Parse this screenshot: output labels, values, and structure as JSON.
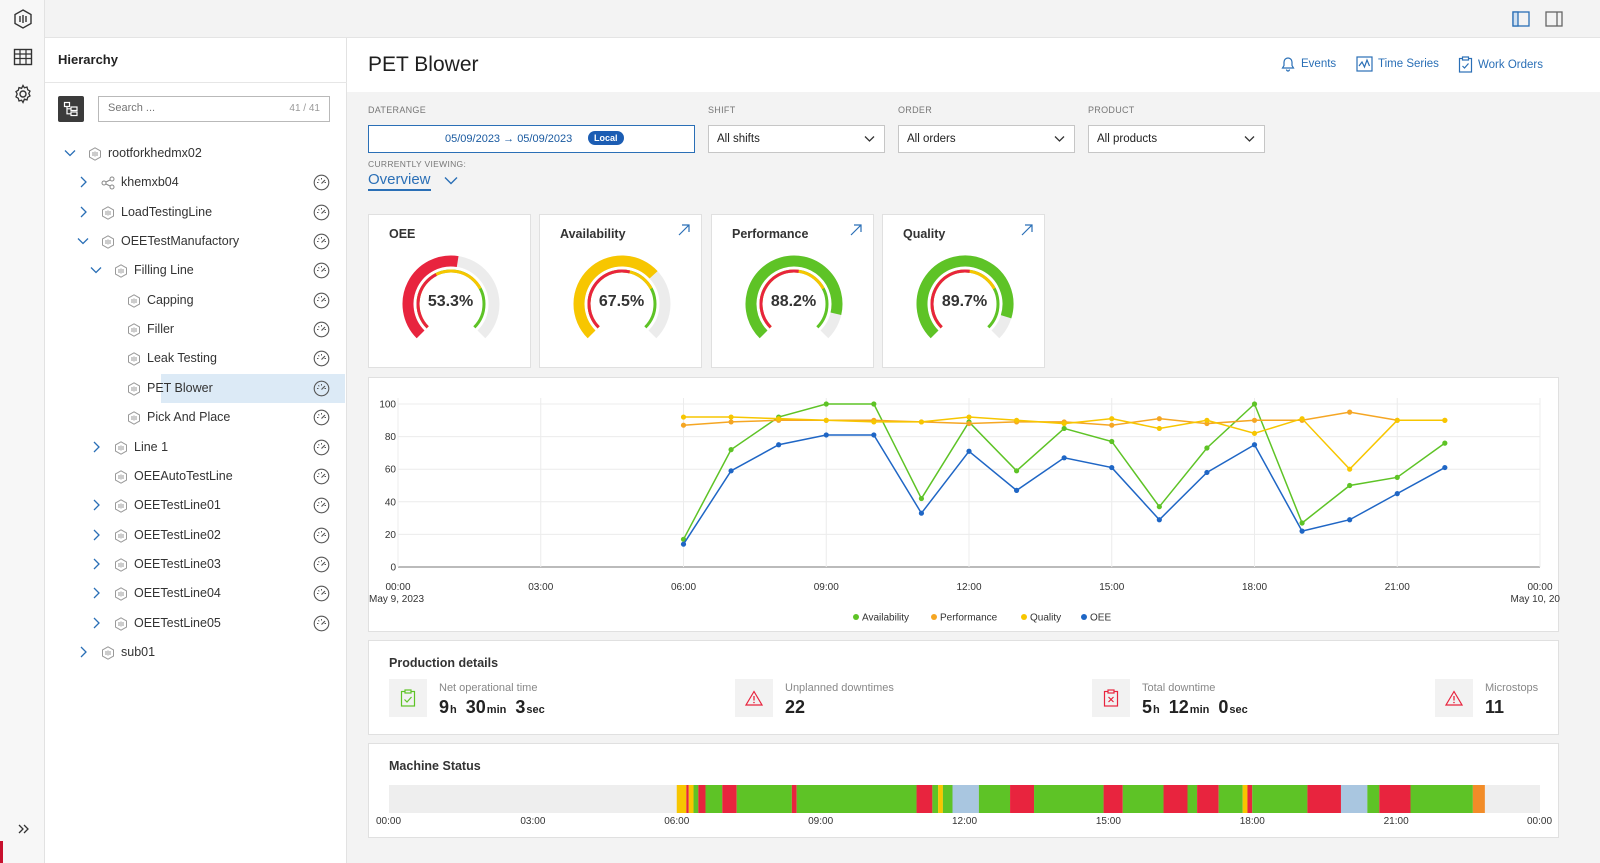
{
  "sidebar": {
    "title": "Hierarchy",
    "search": {
      "placeholder": "Search ...",
      "count": "41 / 41"
    },
    "items": [
      {
        "label": "rootforkhedmx02",
        "level": 0,
        "expanded": true,
        "icon": "plant-icon",
        "gauge": false
      },
      {
        "label": "khemxb04",
        "level": 1,
        "expanded": false,
        "icon": "share-icon",
        "gauge": true
      },
      {
        "label": "LoadTestingLine",
        "level": 1,
        "expanded": false,
        "icon": "plant-icon",
        "gauge": true
      },
      {
        "label": "OEETestManufactory",
        "level": 1,
        "expanded": true,
        "icon": "plant-icon",
        "gauge": true
      },
      {
        "label": "Filling Line",
        "level": 2,
        "expanded": true,
        "icon": "plant-icon",
        "gauge": true
      },
      {
        "label": "Capping",
        "level": 3,
        "icon": "plant-icon",
        "gauge": true
      },
      {
        "label": "Filler",
        "level": 3,
        "icon": "plant-icon",
        "gauge": true
      },
      {
        "label": "Leak Testing",
        "level": 3,
        "icon": "plant-icon",
        "gauge": true
      },
      {
        "label": "PET Blower",
        "level": 3,
        "icon": "plant-icon",
        "gauge": true,
        "selected": true
      },
      {
        "label": "Pick And Place",
        "level": 3,
        "icon": "plant-icon",
        "gauge": true
      },
      {
        "label": "Line 1",
        "level": 2,
        "expanded": false,
        "icon": "plant-icon",
        "gauge": true
      },
      {
        "label": "OEEAutoTestLine",
        "level": 2,
        "icon": "plant-icon",
        "gauge": true
      },
      {
        "label": "OEETestLine01",
        "level": 2,
        "expanded": false,
        "icon": "plant-icon",
        "gauge": true
      },
      {
        "label": "OEETestLine02",
        "level": 2,
        "expanded": false,
        "icon": "plant-icon",
        "gauge": true
      },
      {
        "label": "OEETestLine03",
        "level": 2,
        "expanded": false,
        "icon": "plant-icon",
        "gauge": true
      },
      {
        "label": "OEETestLine04",
        "level": 2,
        "expanded": false,
        "icon": "plant-icon",
        "gauge": true
      },
      {
        "label": "OEETestLine05",
        "level": 2,
        "expanded": false,
        "icon": "plant-icon",
        "gauge": true
      },
      {
        "label": "sub01",
        "level": 1,
        "expanded": false,
        "icon": "plant-icon",
        "gauge": false
      }
    ]
  },
  "header": {
    "title": "PET Blower",
    "actions": [
      {
        "label": "Events",
        "icon": "bell-icon"
      },
      {
        "label": "Time Series",
        "icon": "timeseries-icon"
      },
      {
        "label": "Work Orders",
        "icon": "clipboard-icon"
      }
    ]
  },
  "filters": {
    "daterange": {
      "label": "DATERANGE",
      "from": "05/09/2023",
      "to": "05/09/2023",
      "badge": "Local"
    },
    "shift": {
      "label": "SHIFT",
      "value": "All shifts"
    },
    "order": {
      "label": "ORDER",
      "value": "All orders"
    },
    "product": {
      "label": "PRODUCT",
      "value": "All products"
    }
  },
  "viewing": {
    "label": "CURRENTLY VIEWING:",
    "value": "Overview"
  },
  "kpis": [
    {
      "title": "OEE",
      "value": "53.3%",
      "outer": 0.533,
      "outer_color": "#e8243e",
      "inner": 0.73,
      "inner_color": "#f7c600",
      "link": false
    },
    {
      "title": "Availability",
      "value": "67.5%",
      "outer": 0.675,
      "outer_color": "#f7c600",
      "inner": 0.55,
      "inner_color": "#e8243e",
      "link": true
    },
    {
      "title": "Performance",
      "value": "88.2%",
      "outer": 0.882,
      "outer_color": "#5ec326",
      "inner": 0.53,
      "inner_color": "#e8243e",
      "link": true
    },
    {
      "title": "Quality",
      "value": "89.7%",
      "outer": 0.897,
      "outer_color": "#5ec326",
      "inner": 0.53,
      "inner_color": "#e8243e",
      "link": true
    }
  ],
  "colors": {
    "accent": "#2a6fb6",
    "green": "#5ec326",
    "red": "#e8243e",
    "yellow": "#f7c600",
    "orange": "#f28c28",
    "blue": "#1f66c5"
  },
  "chart_data": {
    "type": "line",
    "x": [
      "06:00",
      "07:00",
      "08:00",
      "09:00",
      "10:00",
      "11:00",
      "12:00",
      "13:00",
      "14:00",
      "15:00",
      "16:00",
      "17:00",
      "18:00",
      "19:00",
      "20:00",
      "21:00",
      "22:00"
    ],
    "xticks": [
      "00:00",
      "03:00",
      "06:00",
      "09:00",
      "12:00",
      "15:00",
      "18:00",
      "21:00",
      "00:00"
    ],
    "xdate_start": "May 9, 2023",
    "xdate_end": "May 10, 20",
    "ylim": [
      0,
      100
    ],
    "yticks": [
      0,
      20,
      40,
      60,
      80,
      100
    ],
    "grid": true,
    "legend_position": "bottom-center",
    "series": [
      {
        "name": "Availability",
        "color": "#5ec326",
        "values": [
          17,
          72,
          92,
          100,
          100,
          42,
          89,
          59,
          85,
          77,
          37,
          73,
          100,
          27,
          50,
          55,
          76
        ]
      },
      {
        "name": "Performance",
        "color": "#f5a623",
        "values": [
          87,
          89,
          90,
          90,
          90,
          89,
          88,
          89,
          89,
          87,
          91,
          88,
          90,
          90,
          95,
          90,
          90
        ]
      },
      {
        "name": "Quality",
        "color": "#f7c600",
        "values": [
          92,
          92,
          91,
          90,
          89,
          89,
          92,
          90,
          88,
          91,
          85,
          90,
          82,
          91,
          60,
          90,
          90
        ]
      },
      {
        "name": "OEE",
        "color": "#1f66c5",
        "values": [
          14,
          59,
          75,
          81,
          81,
          33,
          71,
          47,
          67,
          61,
          29,
          58,
          75,
          22,
          29,
          45,
          61
        ]
      }
    ]
  },
  "production": {
    "title": "Production details",
    "items": [
      {
        "label": "Net operational time",
        "icon": "clipboard-check-icon",
        "parts": [
          [
            "9",
            "h"
          ],
          [
            "30",
            "min"
          ],
          [
            "3",
            "sec"
          ]
        ]
      },
      {
        "label": "Unplanned downtimes",
        "icon": "warning-icon",
        "value": "22"
      },
      {
        "label": "Total downtime",
        "icon": "clipboard-x-icon",
        "parts": [
          [
            "5",
            "h"
          ],
          [
            "12",
            "min"
          ],
          [
            "0",
            "sec"
          ]
        ]
      },
      {
        "label": "Microstops",
        "icon": "warning-icon",
        "value": "11"
      }
    ]
  },
  "machine_status": {
    "title": "Machine Status",
    "xticks": [
      "00:00",
      "03:00",
      "06:00",
      "09:00",
      "12:00",
      "15:00",
      "18:00",
      "21:00",
      "00:00"
    ],
    "segments": [
      {
        "from": 6.0,
        "to": 6.2,
        "color": "#f7c600"
      },
      {
        "from": 6.2,
        "to": 6.25,
        "color": "#e8243e"
      },
      {
        "from": 6.25,
        "to": 6.35,
        "color": "#f7c600"
      },
      {
        "from": 6.35,
        "to": 6.45,
        "color": "#5ec326"
      },
      {
        "from": 6.45,
        "to": 6.6,
        "color": "#e8243e"
      },
      {
        "from": 6.6,
        "to": 6.95,
        "color": "#5ec326"
      },
      {
        "from": 6.95,
        "to": 7.25,
        "color": "#e8243e"
      },
      {
        "from": 7.25,
        "to": 8.4,
        "color": "#5ec326"
      },
      {
        "from": 8.4,
        "to": 8.5,
        "color": "#e8243e"
      },
      {
        "from": 8.5,
        "to": 11.0,
        "color": "#5ec326"
      },
      {
        "from": 11.0,
        "to": 11.33,
        "color": "#e8243e"
      },
      {
        "from": 11.33,
        "to": 11.45,
        "color": "#5ec326"
      },
      {
        "from": 11.45,
        "to": 11.55,
        "color": "#f7c600"
      },
      {
        "from": 11.55,
        "to": 11.75,
        "color": "#5ec326"
      },
      {
        "from": 11.75,
        "to": 12.3,
        "color": "#a9c6e0"
      },
      {
        "from": 12.3,
        "to": 12.95,
        "color": "#5ec326"
      },
      {
        "from": 12.95,
        "to": 13.45,
        "color": "#e8243e"
      },
      {
        "from": 13.45,
        "to": 14.9,
        "color": "#5ec326"
      },
      {
        "from": 14.9,
        "to": 15.3,
        "color": "#e8243e"
      },
      {
        "from": 15.3,
        "to": 16.15,
        "color": "#5ec326"
      },
      {
        "from": 16.15,
        "to": 16.65,
        "color": "#e8243e"
      },
      {
        "from": 16.65,
        "to": 16.85,
        "color": "#5ec326"
      },
      {
        "from": 16.85,
        "to": 17.3,
        "color": "#e8243e"
      },
      {
        "from": 17.3,
        "to": 17.8,
        "color": "#5ec326"
      },
      {
        "from": 17.8,
        "to": 17.9,
        "color": "#f7c600"
      },
      {
        "from": 17.9,
        "to": 18.0,
        "color": "#e8243e"
      },
      {
        "from": 18.0,
        "to": 19.15,
        "color": "#5ec326"
      },
      {
        "from": 19.15,
        "to": 19.85,
        "color": "#e8243e"
      },
      {
        "from": 19.85,
        "to": 20.4,
        "color": "#a9c6e0"
      },
      {
        "from": 20.4,
        "to": 20.65,
        "color": "#5ec326"
      },
      {
        "from": 20.65,
        "to": 21.3,
        "color": "#e8243e"
      },
      {
        "from": 21.3,
        "to": 22.6,
        "color": "#5ec326"
      },
      {
        "from": 22.6,
        "to": 22.85,
        "color": "#f28c28"
      }
    ]
  }
}
